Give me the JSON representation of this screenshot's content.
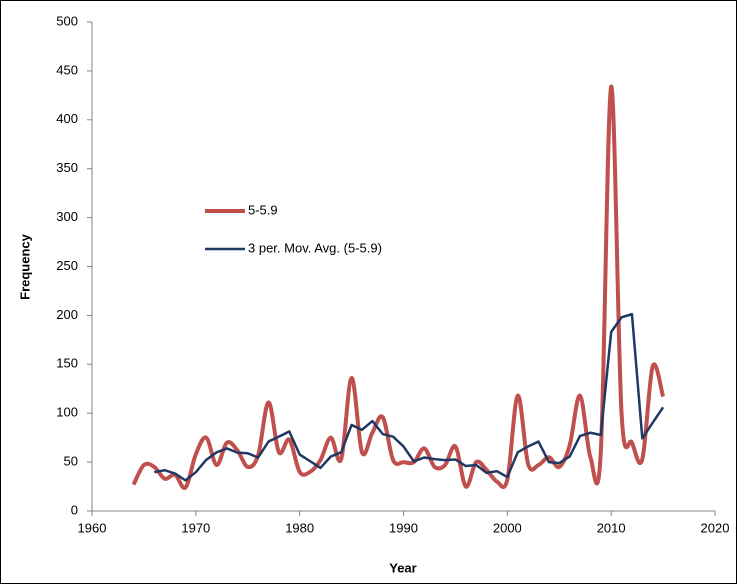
{
  "chart_data": {
    "type": "line",
    "x": [
      1964,
      1965,
      1966,
      1967,
      1968,
      1969,
      1970,
      1971,
      1972,
      1973,
      1974,
      1975,
      1976,
      1977,
      1978,
      1979,
      1980,
      1981,
      1982,
      1983,
      1984,
      1985,
      1986,
      1987,
      1988,
      1989,
      1990,
      1991,
      1992,
      1993,
      1994,
      1995,
      1996,
      1997,
      1998,
      1999,
      2000,
      2001,
      2002,
      2003,
      2004,
      2005,
      2006,
      2007,
      2008,
      2009,
      2010,
      2011,
      2012,
      2013,
      2014,
      2015
    ],
    "series": [
      {
        "name": "5-5.9",
        "color": "#c0504d",
        "smooth": true,
        "values": [
          27,
          47,
          45,
          33,
          37,
          24,
          58,
          75,
          47,
          70,
          62,
          45,
          57,
          111,
          60,
          73,
          40,
          40,
          52,
          75,
          53,
          136,
          60,
          80,
          96,
          52,
          50,
          50,
          64,
          45,
          47,
          66,
          25,
          50,
          42,
          30,
          32,
          118,
          48,
          47,
          55,
          45,
          67,
          118,
          55,
          60,
          434,
          100,
          70,
          53,
          148,
          117
        ]
      },
      {
        "name": "3 per. Mov. Avg. (5-5.9)",
        "color": "#1f3864",
        "smooth": false,
        "values": [
          null,
          null,
          39.7,
          41.7,
          38.3,
          31.3,
          39.7,
          52.3,
          60,
          64,
          59.7,
          59,
          54.7,
          71,
          76,
          81.3,
          57.7,
          51,
          44,
          55.7,
          60,
          88,
          83,
          92,
          78.7,
          76,
          66,
          50.7,
          54.7,
          53,
          52,
          52.7,
          46,
          47,
          39,
          40.7,
          34.7,
          60,
          66,
          71,
          50,
          49,
          55.7,
          76.7,
          80,
          77.7,
          183,
          198,
          201.3,
          74.3,
          90.3,
          106
        ]
      }
    ],
    "xlabel": "Year",
    "ylabel": "Frequency",
    "xlim": [
      1960,
      2020
    ],
    "xticks": [
      1960,
      1970,
      1980,
      1990,
      2000,
      2010,
      2020
    ],
    "ylim": [
      0,
      500
    ],
    "yticks": [
      0,
      50,
      100,
      150,
      200,
      250,
      300,
      350,
      400,
      450,
      500
    ],
    "grid": false
  }
}
